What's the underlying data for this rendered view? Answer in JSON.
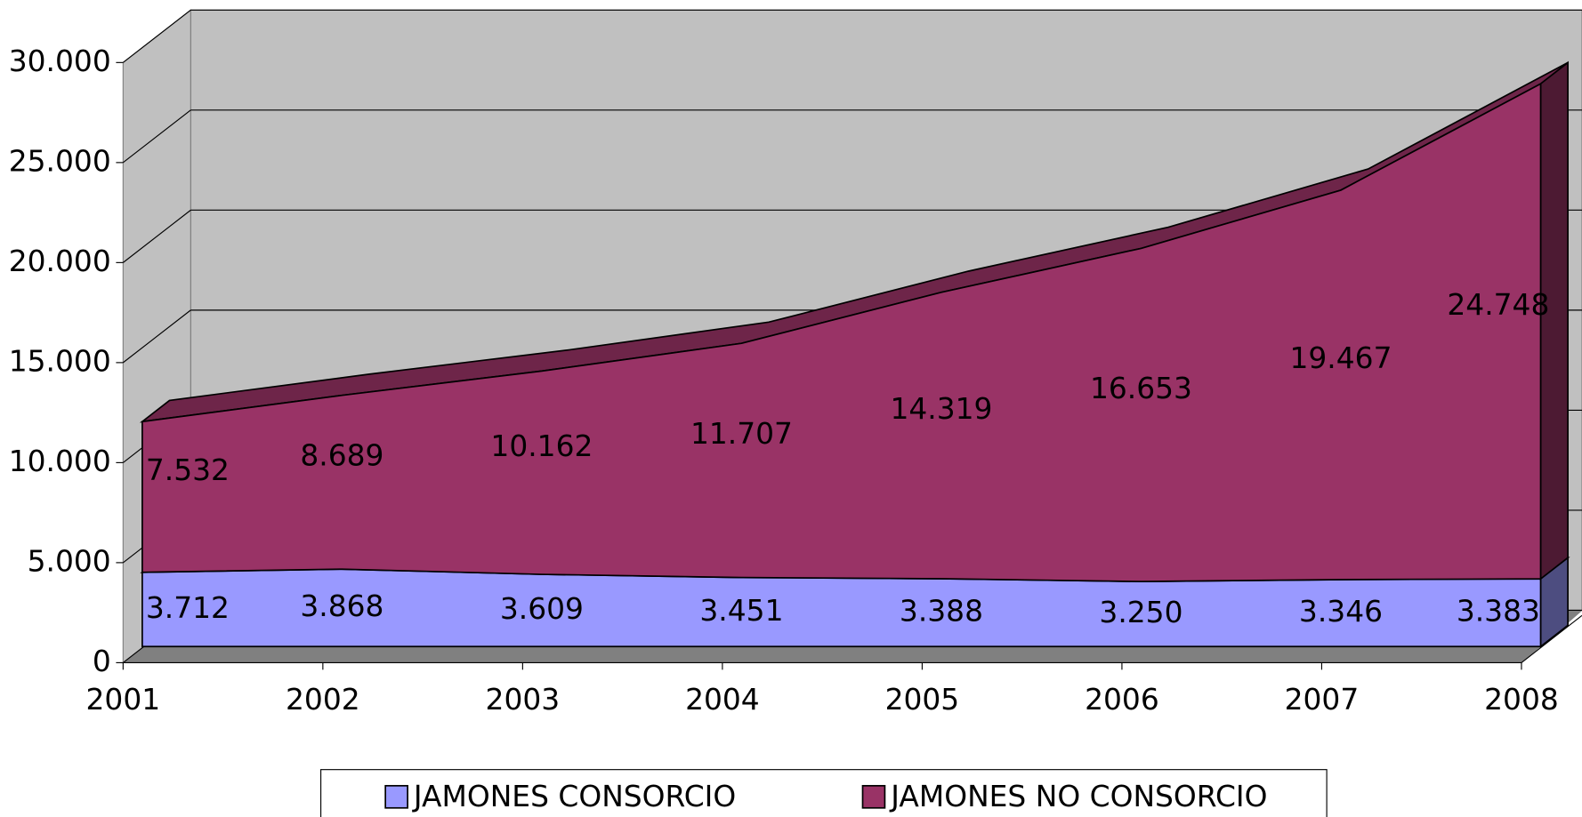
{
  "chart_data": {
    "type": "area3d",
    "categories": [
      "2001",
      "2002",
      "2003",
      "2004",
      "2005",
      "2006",
      "2007",
      "2008"
    ],
    "series": [
      {
        "name": "JAMONES CONSORCIO",
        "color": "#9999ff",
        "values": [
          3712,
          3868,
          3609,
          3451,
          3388,
          3250,
          3346,
          3383
        ],
        "value_labels": [
          "3.712",
          "3.868",
          "3.609",
          "3.451",
          "3.388",
          "3.250",
          "3.346",
          "3.383"
        ]
      },
      {
        "name": "JAMONES NO CONSORCIO",
        "color": "#993366",
        "values": [
          7532,
          8689,
          10162,
          11707,
          14319,
          16653,
          19467,
          24748
        ],
        "value_labels": [
          "7.532",
          "8.689",
          "10.162",
          "11.707",
          "14.319",
          "16.653",
          "19.467",
          "24.748"
        ]
      }
    ],
    "stacked": true,
    "ylim": [
      0,
      30000
    ],
    "yticks": [
      0,
      {
        "value": 5000,
        "label": "5.000"
      },
      {
        "value": 10000,
        "label": "10.000"
      },
      {
        "value": 15000,
        "label": "15.000"
      },
      {
        "value": 20000,
        "label": "20.000"
      },
      {
        "value": 25000,
        "label": "25.000"
      },
      {
        "value": 30000,
        "label": "30.000"
      }
    ],
    "grid": true,
    "legend": "bottom"
  }
}
